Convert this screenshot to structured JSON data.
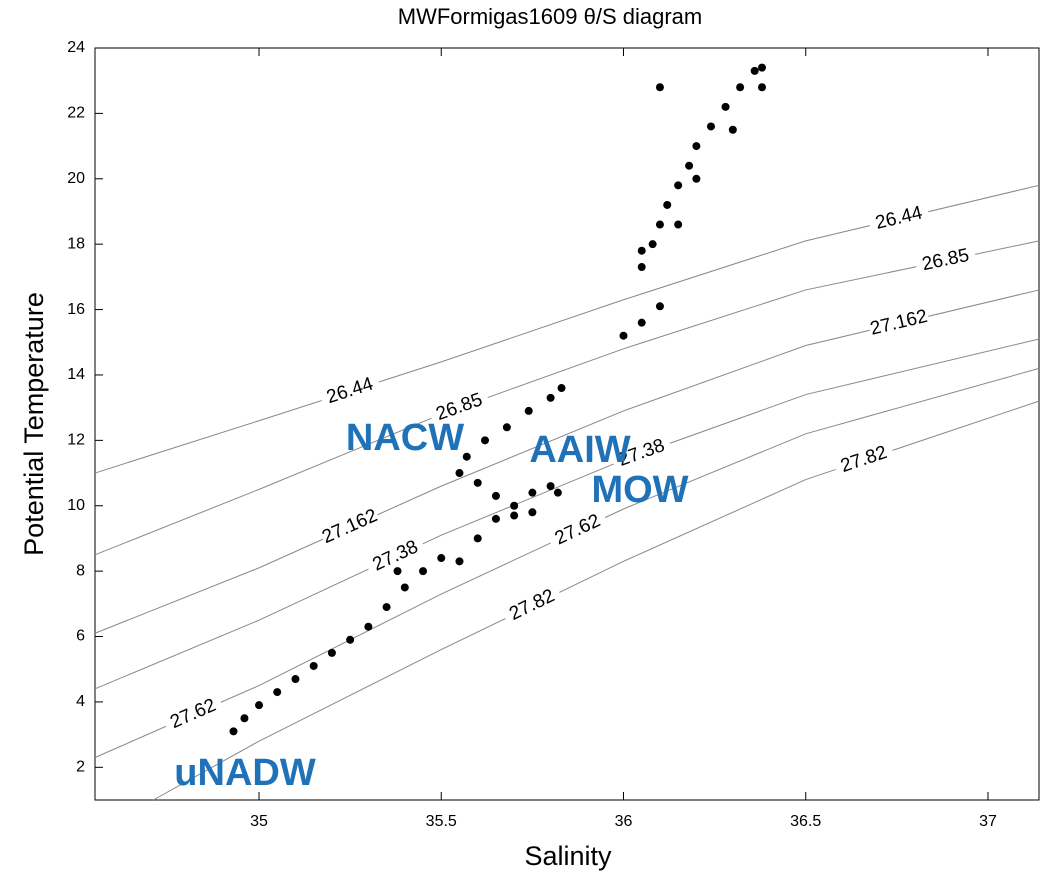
{
  "chart_data": {
    "type": "scatter",
    "title": "MWFormigas1609 θ/S diagram",
    "x_label": "Salinity",
    "y_label": "Potential Temperature",
    "xlim": [
      34.55,
      37.14
    ],
    "ylim": [
      1,
      24
    ],
    "xticks": [
      35,
      35.5,
      36,
      36.5,
      37
    ],
    "yticks": [
      2,
      4,
      6,
      8,
      10,
      12,
      14,
      16,
      18,
      20,
      22,
      24
    ],
    "series": [
      {
        "color": "#000000",
        "x": [
          34.93,
          34.96,
          35.0,
          35.05,
          35.1,
          35.15,
          35.2,
          35.25,
          35.3,
          35.35,
          35.4,
          35.45,
          35.5,
          35.55,
          35.38,
          35.6,
          35.65,
          35.7,
          35.75,
          35.8,
          35.82,
          35.75,
          35.7,
          35.65,
          35.6,
          35.55,
          35.57,
          35.62,
          35.68,
          35.74,
          35.8,
          35.83,
          36.0,
          36.05,
          36.1,
          36.05,
          36.08,
          36.1,
          36.12,
          36.15,
          36.18,
          36.2,
          36.24,
          36.28,
          36.32,
          36.36,
          36.38,
          36.1,
          36.05,
          36.15,
          36.2,
          36.3,
          36.38
        ],
        "y": [
          3.1,
          3.5,
          3.9,
          4.3,
          4.7,
          5.1,
          5.5,
          5.9,
          6.3,
          6.9,
          7.5,
          8.0,
          8.4,
          8.3,
          8.0,
          9.0,
          9.6,
          10.0,
          10.4,
          10.6,
          10.4,
          9.8,
          9.7,
          10.3,
          10.7,
          11.0,
          11.5,
          12.0,
          12.4,
          12.9,
          13.3,
          13.6,
          15.2,
          15.6,
          16.1,
          17.3,
          18.0,
          18.6,
          19.2,
          19.8,
          20.4,
          21.0,
          21.6,
          22.2,
          22.8,
          23.3,
          23.4,
          22.8,
          17.8,
          18.6,
          20.0,
          21.5,
          22.8
        ]
      }
    ],
    "contours": [
      {
        "name": "26.44",
        "x": [
          34.55,
          35,
          35.5,
          36,
          36.5,
          37.14
        ],
        "y": [
          11.0,
          12.6,
          14.4,
          16.3,
          18.1,
          19.8
        ]
      },
      {
        "name": "26.85",
        "x": [
          34.55,
          35,
          35.5,
          36,
          36.5,
          37.14
        ],
        "y": [
          8.5,
          10.5,
          12.8,
          14.8,
          16.6,
          18.1
        ]
      },
      {
        "name": "27.162",
        "x": [
          34.55,
          35,
          35.5,
          36,
          36.5,
          37.14
        ],
        "y": [
          6.1,
          8.1,
          10.6,
          12.9,
          14.9,
          16.6
        ]
      },
      {
        "name": "27.38",
        "x": [
          34.55,
          35,
          35.5,
          36,
          36.5,
          37.14
        ],
        "y": [
          4.4,
          6.5,
          9.1,
          11.4,
          13.4,
          15.1
        ]
      },
      {
        "name": "27.62",
        "x": [
          34.55,
          35,
          35.5,
          36,
          36.5,
          37.14
        ],
        "y": [
          2.3,
          4.5,
          7.3,
          9.9,
          12.2,
          14.2
        ]
      },
      {
        "name": "27.82",
        "x": [
          34.71,
          35,
          35.5,
          36,
          36.5,
          37.14
        ],
        "y": [
          1.0,
          2.8,
          5.6,
          8.3,
          10.8,
          13.2
        ]
      }
    ],
    "annotations": [
      "NACW",
      "AAIW",
      "MOW",
      "uNADW"
    ]
  }
}
